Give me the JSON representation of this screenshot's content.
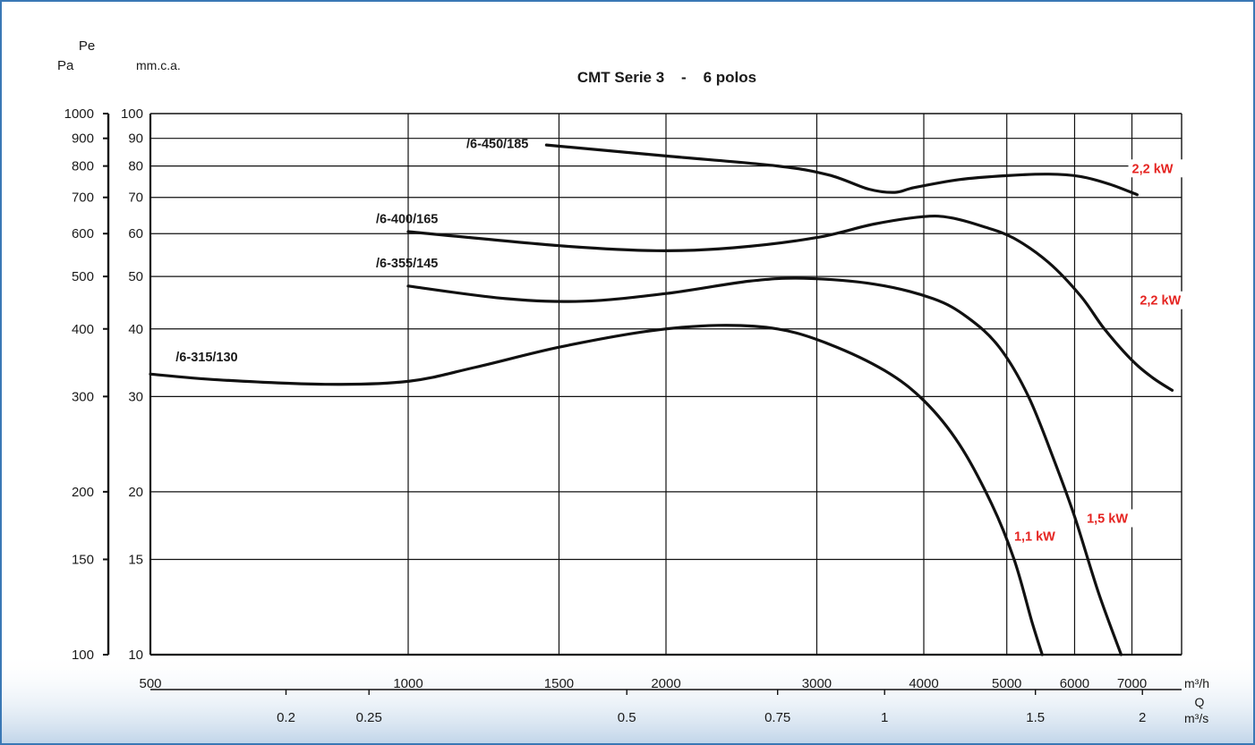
{
  "chart_data": {
    "type": "line",
    "title": "CMT Serie 3    -    6 polos",
    "ylabel_top": "Pe",
    "ylabel_left": "Pa",
    "ylabel_mid": "mm.c.a.",
    "xlabel_unit": "m³/h",
    "x2label_name": "Q",
    "x2label_unit": "m³/s",
    "x_scale": "log",
    "y_scale": "log",
    "xlim": [
      500,
      8000
    ],
    "ylim_mmca": [
      10,
      100
    ],
    "ylim_pa": [
      100,
      1000
    ],
    "grid": true,
    "x_ticks": [
      "500",
      "1000",
      "1500",
      "2000",
      "3000",
      "4000",
      "5000",
      "6000",
      "7000"
    ],
    "x_tick_values": [
      500,
      1000,
      1500,
      2000,
      3000,
      4000,
      5000,
      6000,
      7000
    ],
    "x2_ticks": [
      "0.2",
      "0.25",
      "0.5",
      "0.75",
      "1",
      "1.5",
      "2"
    ],
    "x2_tick_values_m3h": [
      720,
      900,
      1800,
      2700,
      3600,
      5400,
      7200
    ],
    "y_mmca_ticks": [
      "10",
      "15",
      "20",
      "30",
      "40",
      "50",
      "60",
      "70",
      "80",
      "90",
      "100"
    ],
    "y_mmca_values": [
      10,
      15,
      20,
      30,
      40,
      50,
      60,
      70,
      80,
      90,
      100
    ],
    "y_pa_ticks": [
      "100",
      "150",
      "200",
      "300",
      "400",
      "500",
      "600",
      "700",
      "800",
      "900",
      "1000"
    ],
    "y_pa_values": [
      100,
      150,
      200,
      300,
      400,
      500,
      600,
      700,
      800,
      900,
      1000
    ],
    "series": [
      {
        "name": "/6-450/185",
        "label_at": [
          1450,
          88
        ],
        "power": "2,2 kW",
        "power_at": [
          7000,
          78
        ],
        "points": [
          [
            1450,
            87.5
          ],
          [
            2000,
            83.5
          ],
          [
            2700,
            80
          ],
          [
            3100,
            77
          ],
          [
            3450,
            72.5
          ],
          [
            3700,
            71.5
          ],
          [
            3900,
            73
          ],
          [
            4400,
            75.5
          ],
          [
            5000,
            76.8
          ],
          [
            5600,
            77.3
          ],
          [
            6100,
            76.5
          ],
          [
            6600,
            74
          ],
          [
            7100,
            70.8
          ]
        ]
      },
      {
        "name": "/6-400/165",
        "label_at": [
          1000,
          64
        ],
        "power": "2,2 kW",
        "power_at": [
          7150,
          44.5
        ],
        "points": [
          [
            1000,
            60.5
          ],
          [
            1500,
            57
          ],
          [
            1950,
            55.8
          ],
          [
            2400,
            56.5
          ],
          [
            3000,
            59
          ],
          [
            3500,
            62.5
          ],
          [
            4000,
            64.5
          ],
          [
            4300,
            64.2
          ],
          [
            4700,
            61.8
          ],
          [
            5100,
            58.8
          ],
          [
            5600,
            53
          ],
          [
            6100,
            46
          ],
          [
            6500,
            40
          ],
          [
            7000,
            35
          ],
          [
            7400,
            32.5
          ],
          [
            7800,
            30.8
          ]
        ]
      },
      {
        "name": "/6-355/145",
        "label_at": [
          1000,
          53
        ],
        "power": "1,5 kW",
        "power_at": [
          6200,
          17.6
        ],
        "points": [
          [
            1000,
            48
          ],
          [
            1300,
            45.5
          ],
          [
            1600,
            45
          ],
          [
            2000,
            46.5
          ],
          [
            2500,
            49
          ],
          [
            2900,
            49.6
          ],
          [
            3500,
            48.4
          ],
          [
            4100,
            45.5
          ],
          [
            4500,
            42
          ],
          [
            4900,
            37
          ],
          [
            5300,
            30
          ],
          [
            5700,
            22.5
          ],
          [
            6000,
            18
          ],
          [
            6400,
            13
          ],
          [
            6800,
            10
          ]
        ]
      },
      {
        "name": "/6-315/130",
        "label_at": [
          520,
          35.5
        ],
        "power": "1,1 kW",
        "power_at": [
          5100,
          16.3
        ],
        "points": [
          [
            500,
            33
          ],
          [
            600,
            32.2
          ],
          [
            800,
            31.6
          ],
          [
            1000,
            32
          ],
          [
            1200,
            34
          ],
          [
            1500,
            37
          ],
          [
            1900,
            39.6
          ],
          [
            2300,
            40.6
          ],
          [
            2700,
            40
          ],
          [
            3100,
            37.5
          ],
          [
            3600,
            33.5
          ],
          [
            4000,
            29.5
          ],
          [
            4400,
            24.5
          ],
          [
            4800,
            19
          ],
          [
            5100,
            15
          ],
          [
            5350,
            11.5
          ],
          [
            5500,
            10
          ]
        ]
      }
    ]
  }
}
